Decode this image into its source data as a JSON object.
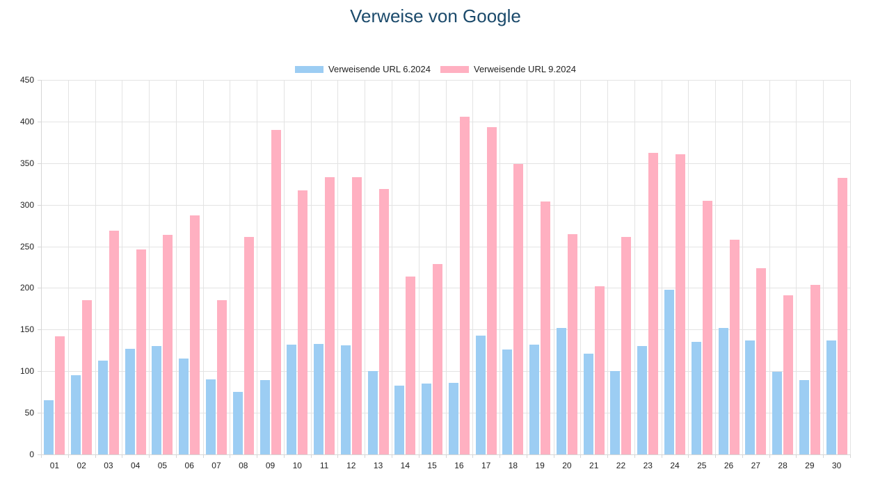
{
  "colors": {
    "title": "#1B4A6B",
    "series_blue": "#9CCDF3",
    "series_pink": "#FFB0C1",
    "gridline": "#E3E3E3",
    "axis": "#D6D6D6",
    "text": "#222222",
    "background": "#FFFFFF"
  },
  "chart_data": {
    "type": "bar",
    "title": "Verweise von Google",
    "xlabel": "",
    "ylabel": "",
    "ylim": [
      0,
      450
    ],
    "ytick_step": 50,
    "grid": true,
    "legend_position": "top",
    "categories": [
      "01",
      "02",
      "03",
      "04",
      "05",
      "06",
      "07",
      "08",
      "09",
      "10",
      "11",
      "12",
      "13",
      "14",
      "15",
      "16",
      "17",
      "18",
      "19",
      "20",
      "21",
      "22",
      "23",
      "24",
      "25",
      "26",
      "27",
      "28",
      "29",
      "30"
    ],
    "series": [
      {
        "name": "Verweisende URL 6.2024",
        "color": "#9CCDF3",
        "values": [
          65,
          95,
          113,
          127,
          130,
          115,
          90,
          75,
          89,
          132,
          133,
          131,
          100,
          83,
          85,
          86,
          143,
          126,
          132,
          152,
          121,
          100,
          130,
          198,
          135,
          152,
          137,
          99,
          89,
          137
        ]
      },
      {
        "name": "Verweisende URL 9.2024",
        "color": "#FFB0C1",
        "values": [
          142,
          185,
          269,
          246,
          264,
          287,
          185,
          261,
          390,
          317,
          333,
          333,
          319,
          214,
          229,
          406,
          393,
          349,
          304,
          265,
          202,
          261,
          362,
          361,
          305,
          258,
          224,
          191,
          204,
          332
        ]
      }
    ]
  }
}
